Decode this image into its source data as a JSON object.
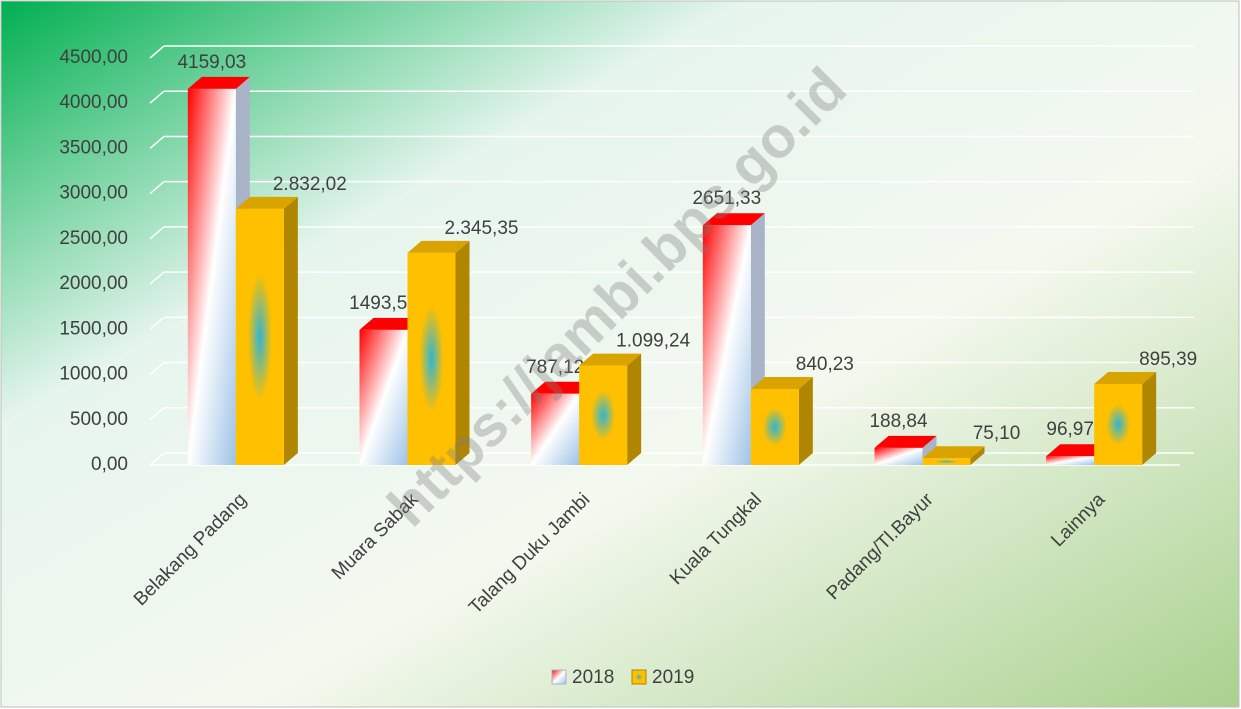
{
  "chart_data": {
    "type": "bar3d",
    "categories": [
      "Belakang Padang",
      "Muara Sabak",
      "Talang Duku Jambi",
      "Kuala Tungkal",
      "Padang/Tl.Bayur",
      "Lainnya"
    ],
    "series": [
      {
        "name": "2018",
        "color": "#ff0000",
        "values": [
          4159.03,
          1493.56,
          787.12,
          2651.33,
          188.84,
          96.97
        ],
        "value_labels": [
          "4159,03",
          "1493,56",
          "787,12",
          "2651,33",
          "188,84",
          "96,97"
        ]
      },
      {
        "name": "2019",
        "color": "#ffc000",
        "values": [
          2832.02,
          2345.35,
          1099.24,
          840.23,
          75.1,
          895.39
        ],
        "value_labels": [
          "2.832,02",
          "2.345,35",
          "1.099,24",
          "840,23",
          "75,10",
          "895,39"
        ]
      }
    ],
    "ylim": [
      0,
      4500
    ],
    "yticks": [
      {
        "value": 0,
        "label": "0,00"
      },
      {
        "value": 500,
        "label": "500,00"
      },
      {
        "value": 1000,
        "label": "1000,00"
      },
      {
        "value": 1500,
        "label": "1500,00"
      },
      {
        "value": 2000,
        "label": "2000,00"
      },
      {
        "value": 2500,
        "label": "2500,00"
      },
      {
        "value": 3000,
        "label": "3000,00"
      },
      {
        "value": 3500,
        "label": "3500,00"
      },
      {
        "value": 4000,
        "label": "4000,00"
      },
      {
        "value": 4500,
        "label": "4500,00"
      }
    ],
    "grid": true,
    "legend": "bottom",
    "watermark": "https://jambi.bps.go.id"
  }
}
